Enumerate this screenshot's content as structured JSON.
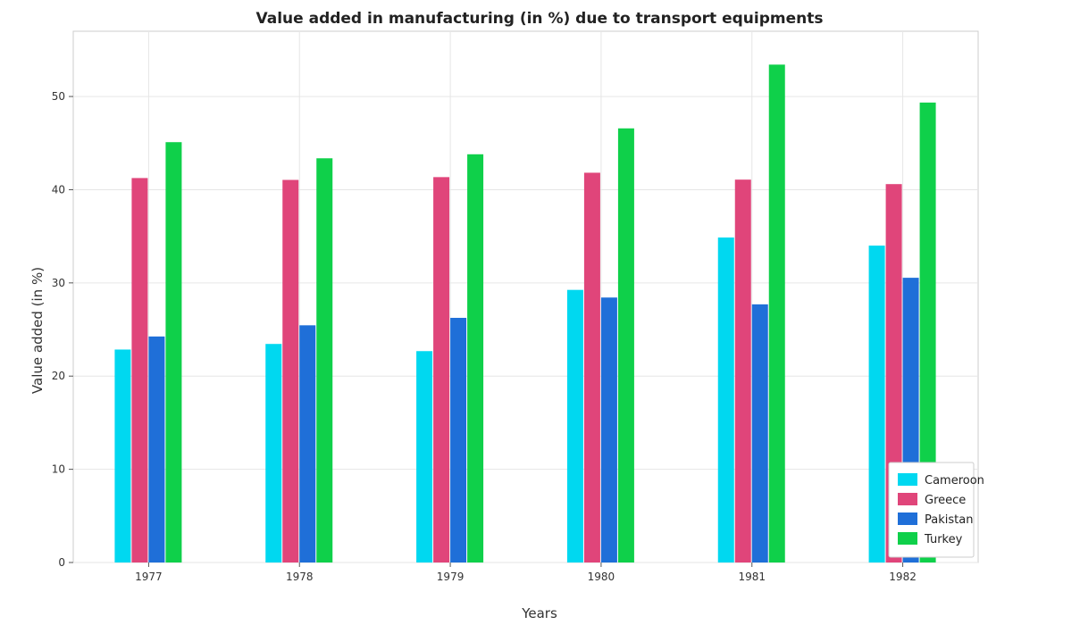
{
  "chart_data": {
    "type": "bar",
    "title": "Value added in manufacturing (in %) due to transport equipments",
    "xlabel": "Years",
    "ylabel": "Value added (in %)",
    "categories": [
      "1977",
      "1978",
      "1979",
      "1980",
      "1981",
      "1982"
    ],
    "ylim": [
      0,
      57
    ],
    "yticks": [
      0,
      10,
      20,
      30,
      40,
      50
    ],
    "grid": true,
    "legend_position": "bottom-right",
    "series": [
      {
        "name": "Cameroon",
        "color": "#00d8f0",
        "values": [
          22.85,
          23.45,
          22.68,
          29.25,
          34.87,
          34.0
        ]
      },
      {
        "name": "Greece",
        "color": "#e0457a",
        "values": [
          41.25,
          41.05,
          41.35,
          41.82,
          41.08,
          40.6
        ]
      },
      {
        "name": "Pakistan",
        "color": "#1f6fd8",
        "values": [
          24.25,
          25.45,
          26.25,
          28.43,
          27.7,
          30.55
        ]
      },
      {
        "name": "Turkey",
        "color": "#0fd04a",
        "values": [
          45.1,
          43.37,
          43.8,
          46.58,
          53.42,
          49.35
        ]
      }
    ]
  }
}
